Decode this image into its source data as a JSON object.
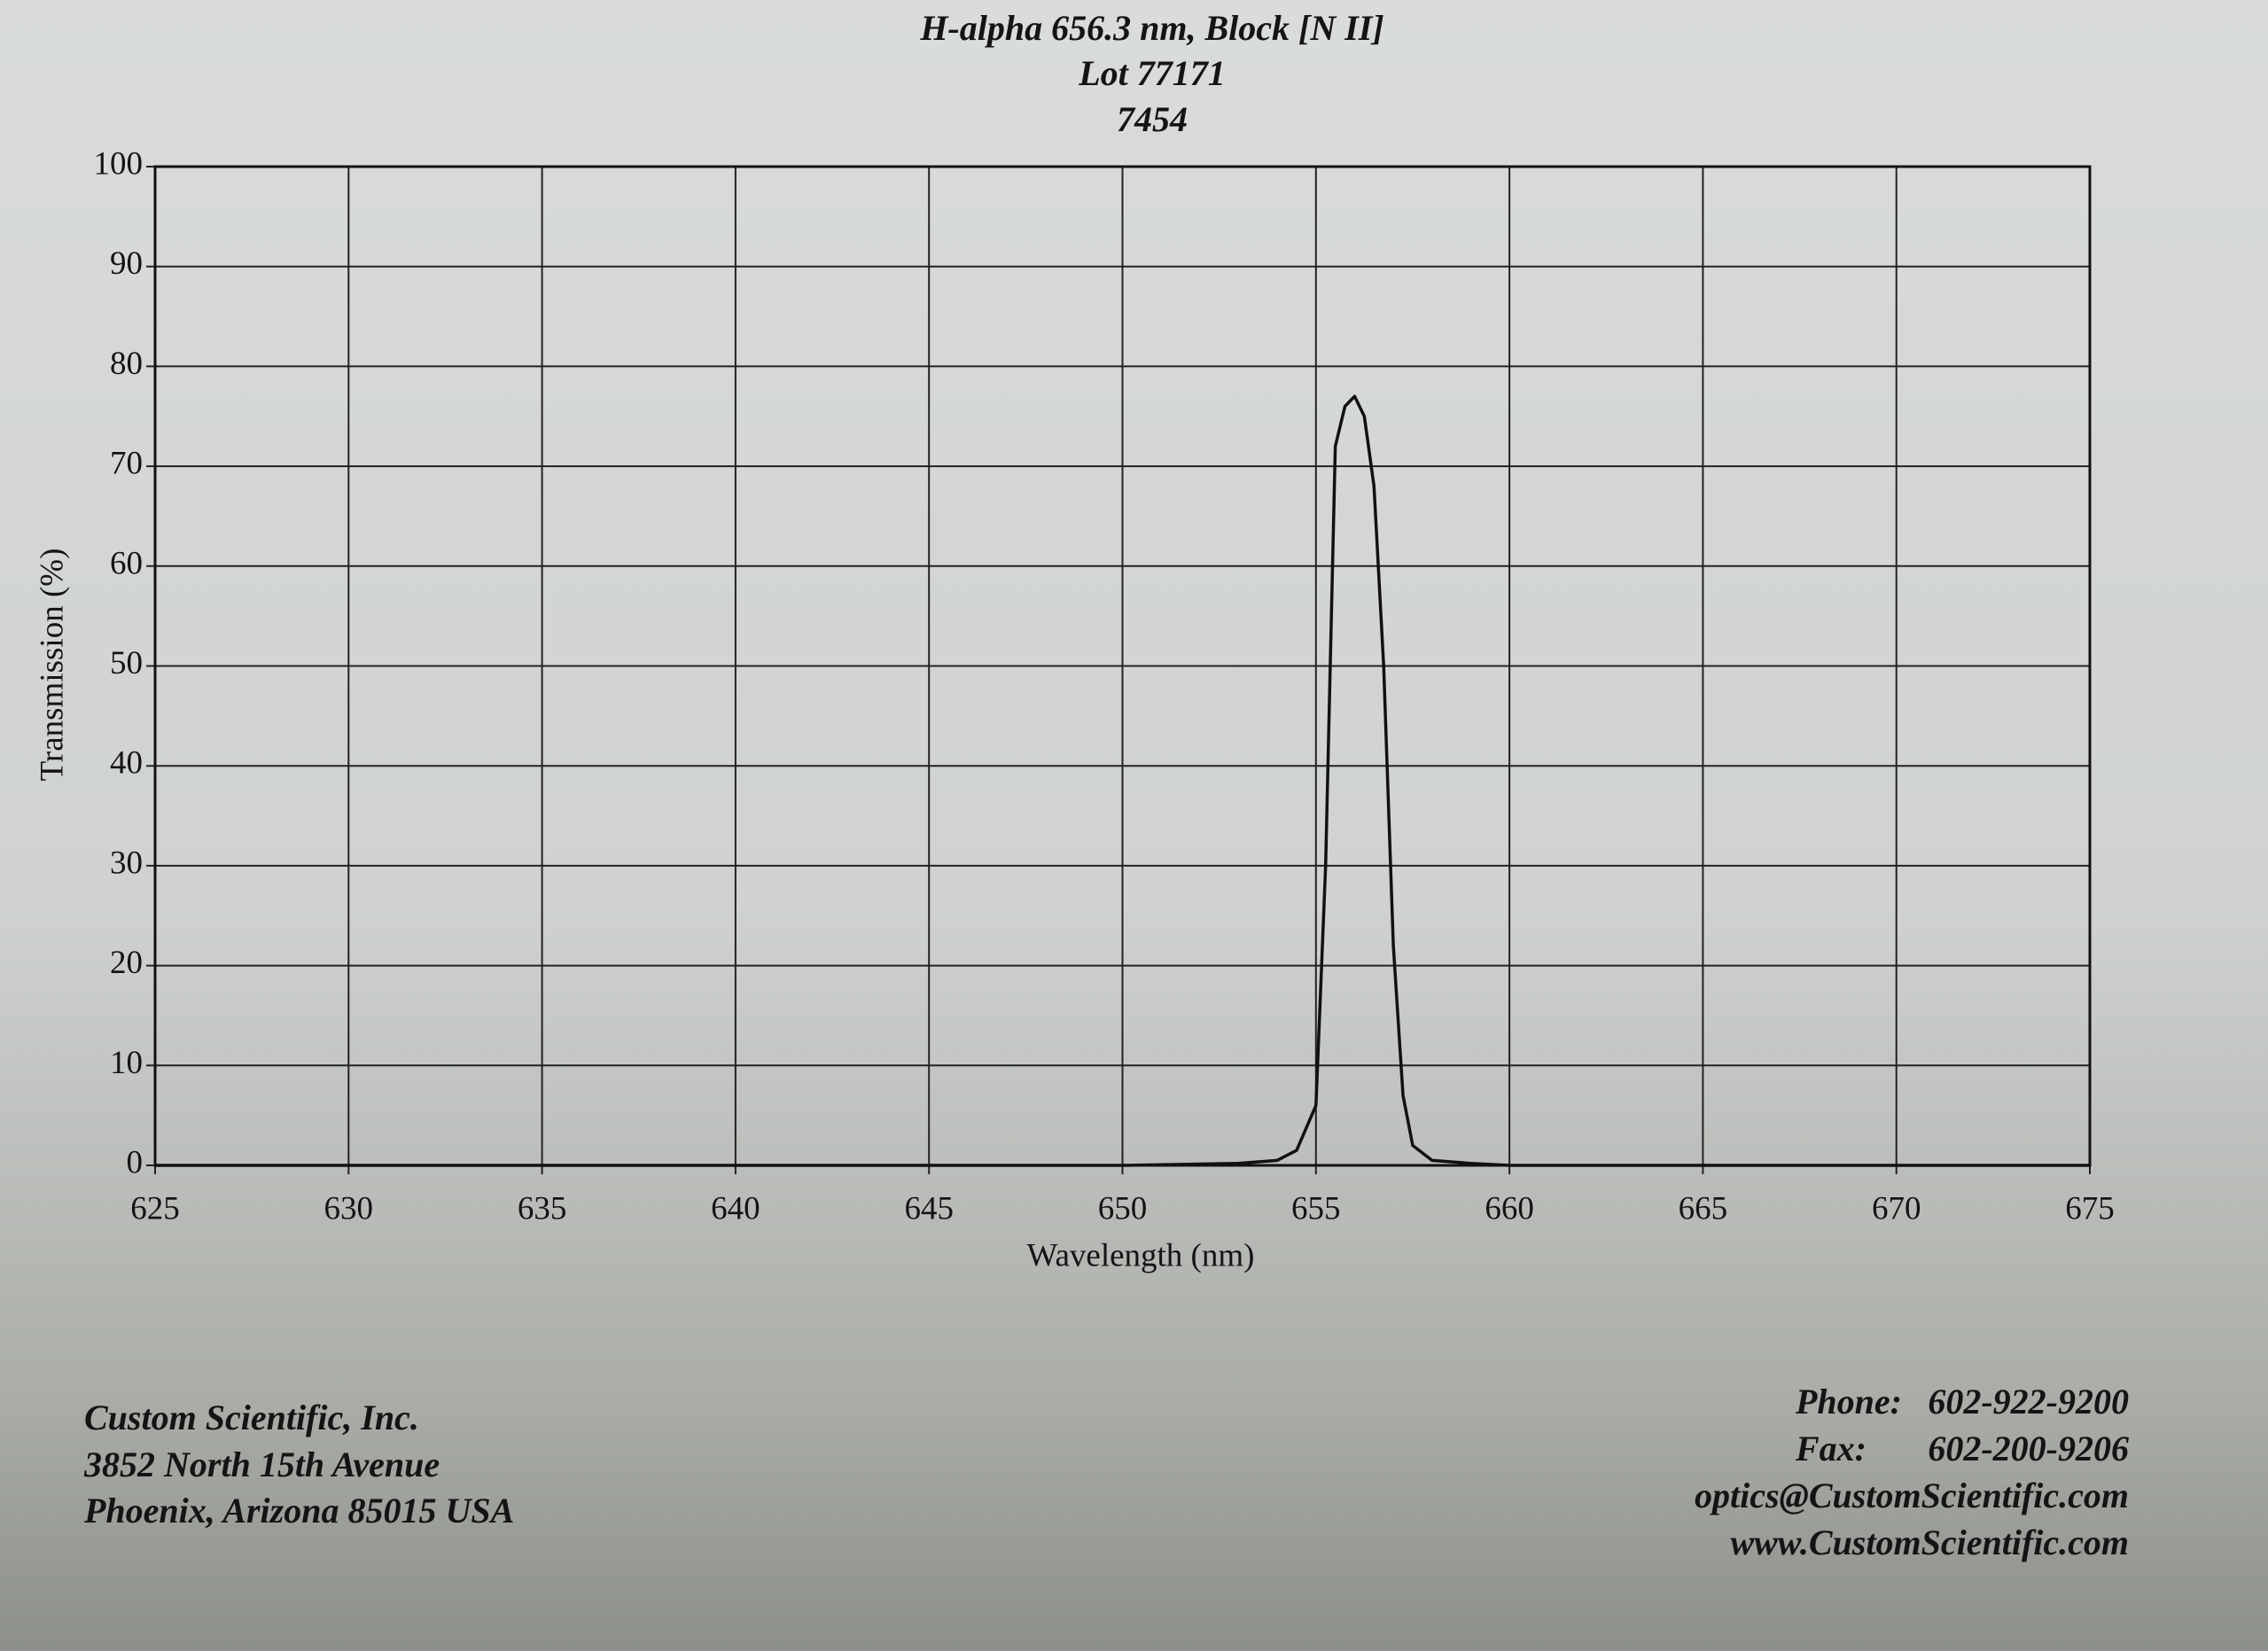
{
  "chart_data": {
    "type": "line",
    "title": [
      "H-alpha 656.3 nm, Block [N II]",
      "Lot 77171",
      "7454"
    ],
    "xlabel": "Wavelength (nm)",
    "ylabel": "Transmission (%)",
    "series": [
      {
        "name": "Transmission",
        "color": "#111111",
        "x": [
          625,
          650,
          653,
          654,
          654.5,
          655,
          655.25,
          655.5,
          655.75,
          656,
          656.25,
          656.5,
          656.75,
          657,
          657.25,
          657.5,
          658,
          659,
          660,
          675
        ],
        "values": [
          0,
          0,
          0.2,
          0.5,
          1.5,
          6,
          30,
          72,
          76,
          77,
          75,
          68,
          50,
          22,
          7,
          2,
          0.5,
          0.2,
          0,
          0
        ]
      }
    ],
    "xlim": [
      625,
      675
    ],
    "ylim": [
      0,
      100
    ],
    "xticks": [
      625,
      630,
      635,
      640,
      645,
      650,
      655,
      660,
      665,
      670,
      675
    ],
    "yticks": [
      0,
      10,
      20,
      30,
      40,
      50,
      60,
      70,
      80,
      90,
      100
    ],
    "grid": true
  },
  "footer": {
    "address": [
      "Custom Scientific, Inc.",
      "3852 North 15th Avenue",
      "Phoenix, Arizona 85015 USA"
    ],
    "phone_label": "Phone:",
    "phone": "602-922-9200",
    "fax_label": "Fax:",
    "fax": "602-200-9206",
    "email": "optics@CustomScientific.com",
    "web": "www.CustomScientific.com"
  }
}
